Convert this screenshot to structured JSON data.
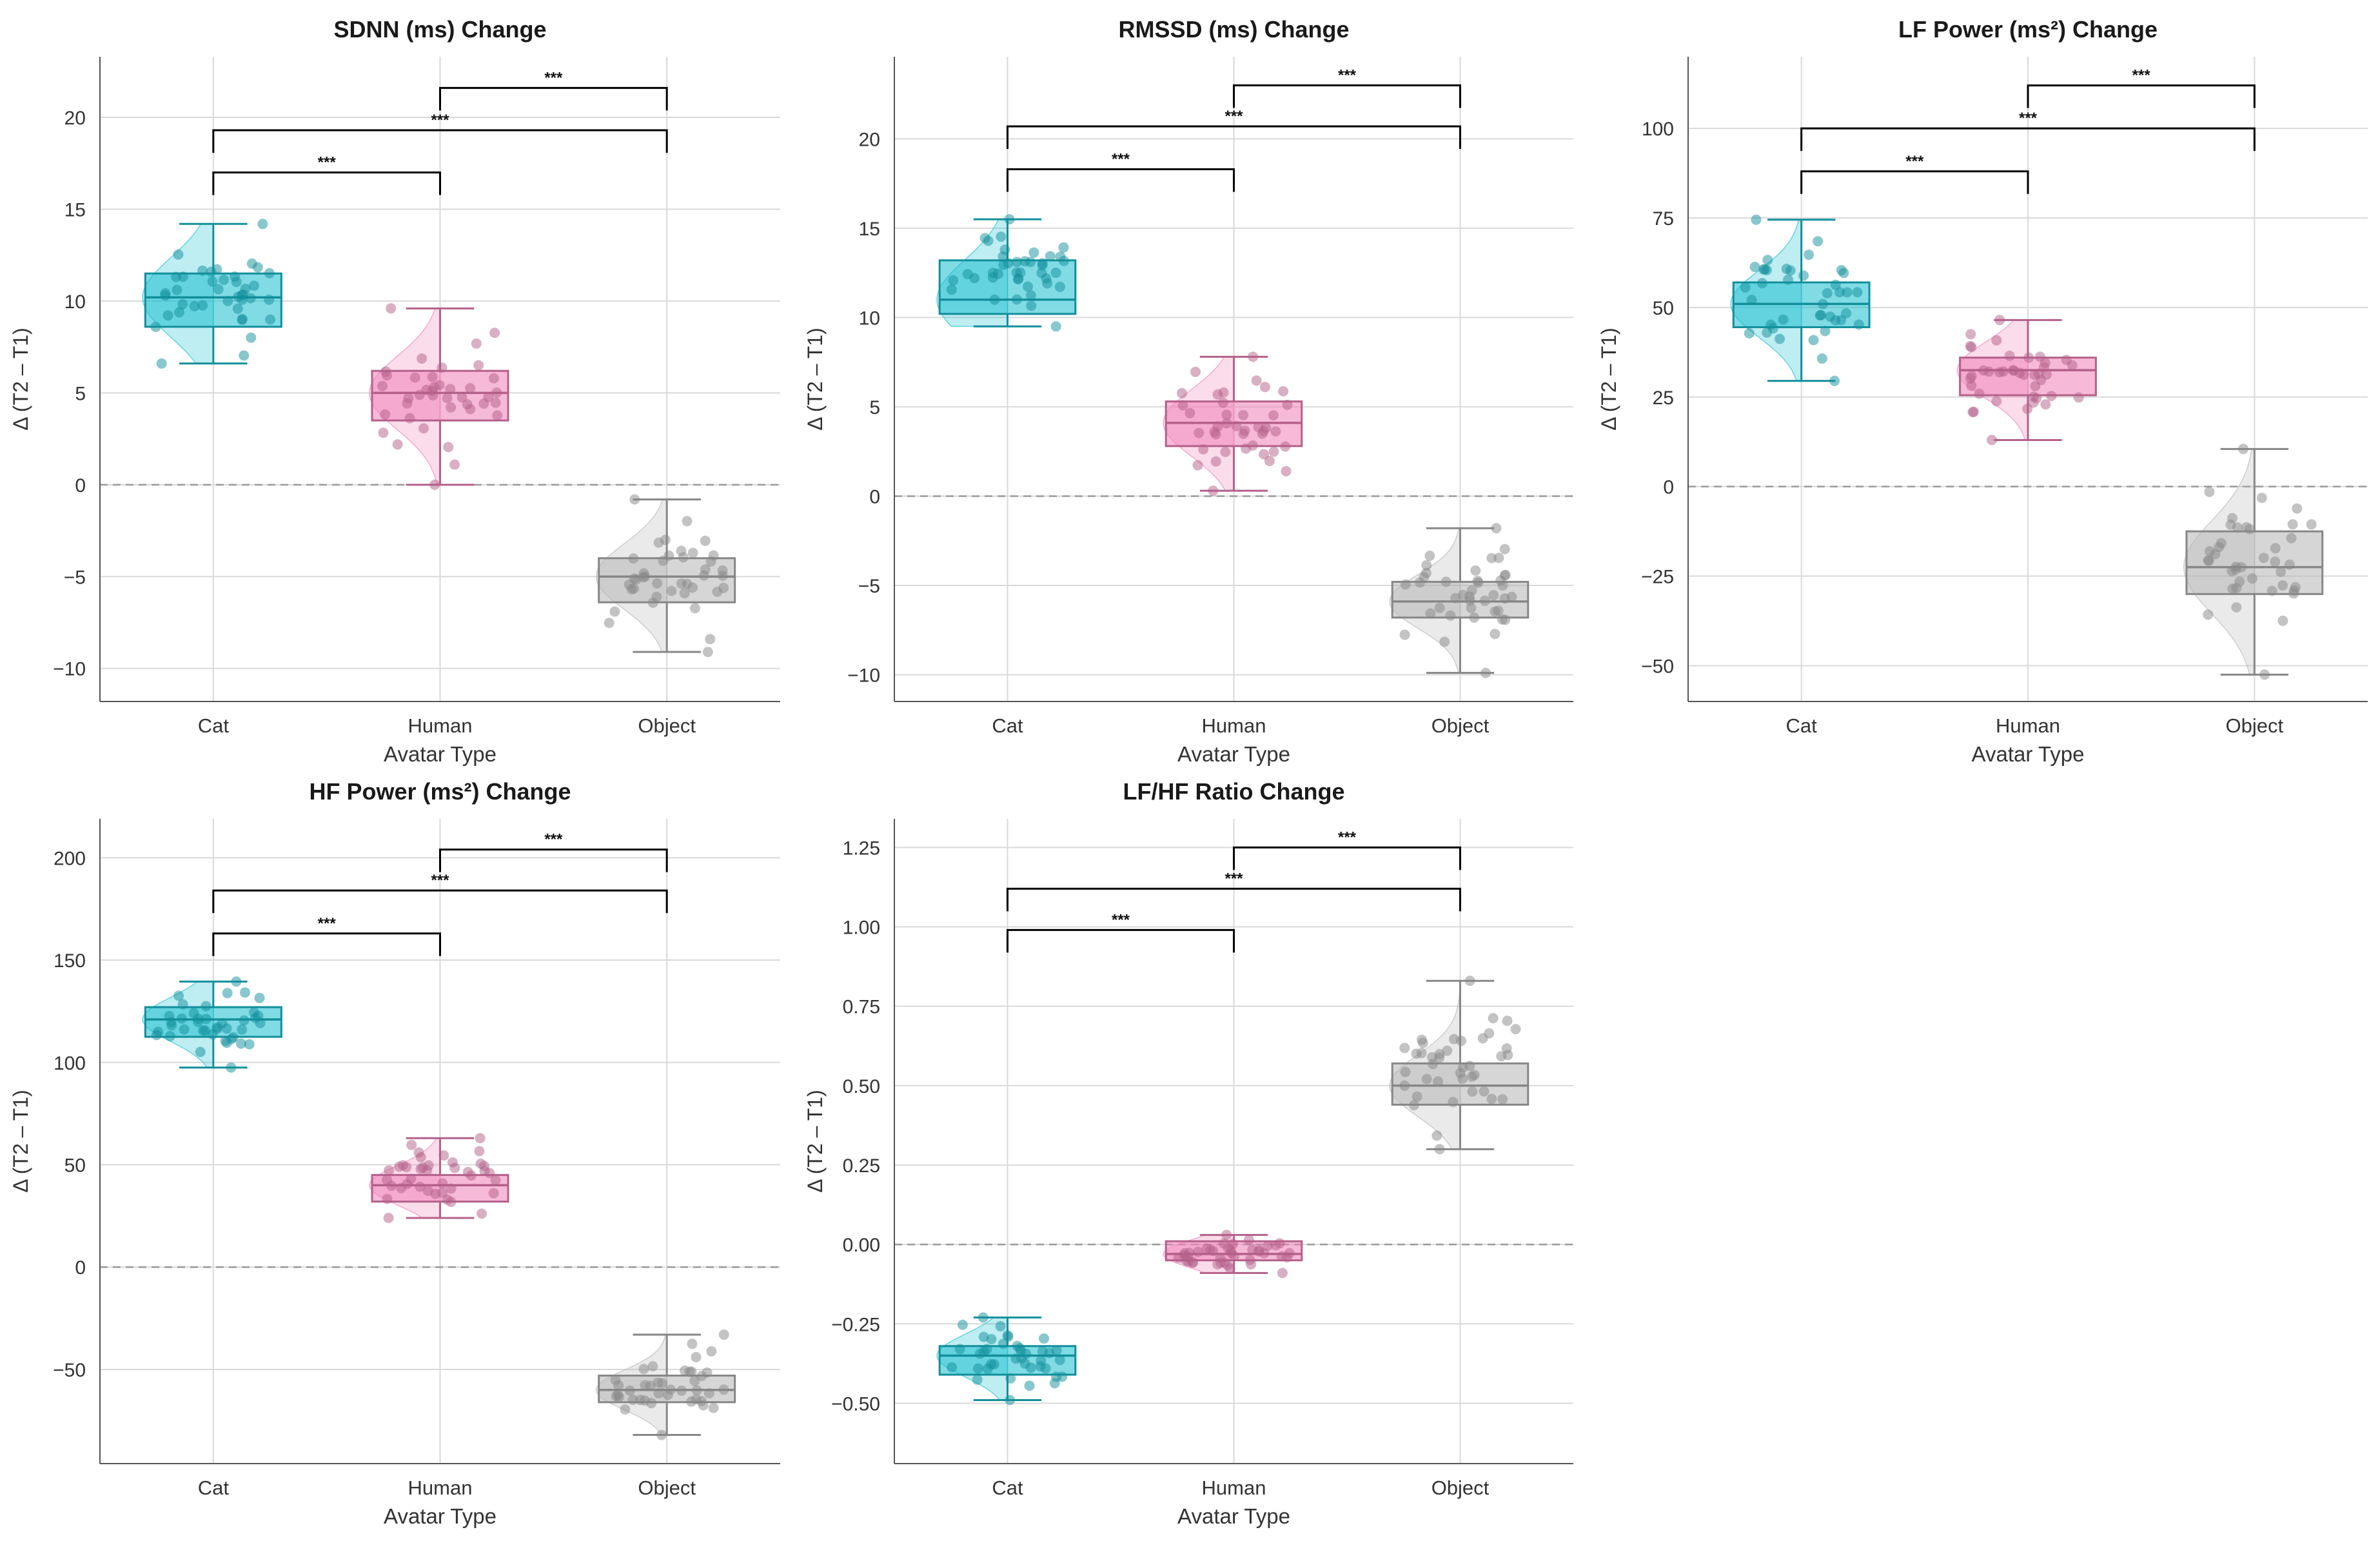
{
  "figure": {
    "colors": {
      "Cat": "#17becf",
      "Human": "#f080b8",
      "Object": "#b4b4b4",
      "bracket": "#000000",
      "grid": "#d9d9d9",
      "zero_line": "#999999"
    }
  },
  "chart_data": [
    {
      "type": "box",
      "title": "SDNN (ms) Change",
      "xlabel": "Avatar Type",
      "ylabel": "Δ (T2 – T1)",
      "categories": [
        "Cat",
        "Human",
        "Object"
      ],
      "yticks": [
        -10,
        -5,
        0,
        5,
        10,
        15,
        20
      ],
      "ytick_labels": [
        "−10",
        "−5",
        "0",
        "5",
        "10",
        "15",
        "20"
      ],
      "ylim": [
        -11.8,
        23.3
      ],
      "zero_line": true,
      "groups": [
        {
          "name": "Cat",
          "whisker_low": 6.6,
          "q1": 8.6,
          "median": 10.2,
          "q3": 11.5,
          "whisker_high": 14.2
        },
        {
          "name": "Human",
          "whisker_low": 0.0,
          "q1": 3.5,
          "median": 5.0,
          "q3": 6.2,
          "whisker_high": 9.6
        },
        {
          "name": "Object",
          "whisker_low": -9.1,
          "q1": -6.4,
          "median": -5.0,
          "q3": -4.0,
          "whisker_high": -0.8
        }
      ],
      "significance": [
        {
          "from": "Cat",
          "to": "Human",
          "label": "***",
          "y": 17.0
        },
        {
          "from": "Cat",
          "to": "Object",
          "label": "***",
          "y": 19.3
        },
        {
          "from": "Human",
          "to": "Object",
          "label": "***",
          "y": 21.6
        }
      ]
    },
    {
      "type": "box",
      "title": "RMSSD (ms) Change",
      "xlabel": "Avatar Type",
      "ylabel": "Δ (T2 – T1)",
      "categories": [
        "Cat",
        "Human",
        "Object"
      ],
      "yticks": [
        -10,
        -5,
        0,
        5,
        10,
        15,
        20
      ],
      "ytick_labels": [
        "−10",
        "−5",
        "0",
        "5",
        "10",
        "15",
        "20"
      ],
      "ylim": [
        -11.5,
        24.6
      ],
      "zero_line": true,
      "groups": [
        {
          "name": "Cat",
          "whisker_low": 9.5,
          "q1": 10.2,
          "median": 11.0,
          "q3": 13.2,
          "whisker_high": 15.5
        },
        {
          "name": "Human",
          "whisker_low": 0.3,
          "q1": 2.8,
          "median": 4.1,
          "q3": 5.3,
          "whisker_high": 7.8
        },
        {
          "name": "Object",
          "whisker_low": -9.9,
          "q1": -6.8,
          "median": -5.9,
          "q3": -4.8,
          "whisker_high": -1.8
        }
      ],
      "significance": [
        {
          "from": "Cat",
          "to": "Human",
          "label": "***",
          "y": 18.3
        },
        {
          "from": "Cat",
          "to": "Object",
          "label": "***",
          "y": 20.7
        },
        {
          "from": "Human",
          "to": "Object",
          "label": "***",
          "y": 23.0
        }
      ]
    },
    {
      "type": "box",
      "title": "LF Power (ms²) Change",
      "xlabel": "Avatar Type",
      "ylabel": "Δ (T2 – T1)",
      "categories": [
        "Cat",
        "Human",
        "Object"
      ],
      "yticks": [
        -50,
        -25,
        0,
        25,
        50,
        75,
        100
      ],
      "ytick_labels": [
        "−50",
        "−25",
        "0",
        "25",
        "50",
        "75",
        "100"
      ],
      "ylim": [
        -60,
        120
      ],
      "zero_line": true,
      "groups": [
        {
          "name": "Cat",
          "whisker_low": 29.5,
          "q1": 44.5,
          "median": 51.0,
          "q3": 57.0,
          "whisker_high": 74.5
        },
        {
          "name": "Human",
          "whisker_low": 13.0,
          "q1": 25.5,
          "median": 32.5,
          "q3": 36.0,
          "whisker_high": 46.5
        },
        {
          "name": "Object",
          "whisker_low": -52.5,
          "q1": -30.0,
          "median": -22.5,
          "q3": -12.5,
          "whisker_high": 10.5
        }
      ],
      "significance": [
        {
          "from": "Cat",
          "to": "Human",
          "label": "***",
          "y": 88.0
        },
        {
          "from": "Cat",
          "to": "Object",
          "label": "***",
          "y": 100.0
        },
        {
          "from": "Human",
          "to": "Object",
          "label": "***",
          "y": 112.0
        }
      ]
    },
    {
      "type": "box",
      "title": "HF Power (ms²) Change",
      "xlabel": "Avatar Type",
      "ylabel": "Δ (T2 – T1)",
      "categories": [
        "Cat",
        "Human",
        "Object"
      ],
      "yticks": [
        -50,
        0,
        50,
        100,
        150,
        200
      ],
      "ytick_labels": [
        "−50",
        "0",
        "50",
        "100",
        "150",
        "200"
      ],
      "ylim": [
        -96,
        219
      ],
      "zero_line": true,
      "groups": [
        {
          "name": "Cat",
          "whisker_low": 97.5,
          "q1": 112.5,
          "median": 121.0,
          "q3": 127.0,
          "whisker_high": 139.5
        },
        {
          "name": "Human",
          "whisker_low": 24.0,
          "q1": 32.0,
          "median": 40.0,
          "q3": 45.0,
          "whisker_high": 63.0
        },
        {
          "name": "Object",
          "whisker_low": -82.0,
          "q1": -66.0,
          "median": -60.0,
          "q3": -53.0,
          "whisker_high": -33.0
        }
      ],
      "significance": [
        {
          "from": "Cat",
          "to": "Human",
          "label": "***",
          "y": 163.0
        },
        {
          "from": "Cat",
          "to": "Object",
          "label": "***",
          "y": 184.0
        },
        {
          "from": "Human",
          "to": "Object",
          "label": "***",
          "y": 204.0
        }
      ]
    },
    {
      "type": "box",
      "title": "LF/HF Ratio Change",
      "xlabel": "Avatar Type",
      "ylabel": "Δ (T2 – T1)",
      "categories": [
        "Cat",
        "Human",
        "Object"
      ],
      "yticks": [
        -0.5,
        -0.25,
        0,
        0.25,
        0.5,
        0.75,
        1.0,
        1.25
      ],
      "ytick_labels": [
        "−0.50",
        "−0.25",
        "0.00",
        "0.25",
        "0.50",
        "0.75",
        "1.00",
        "1.25"
      ],
      "ylim": [
        -0.69,
        1.34
      ],
      "zero_line": true,
      "groups": [
        {
          "name": "Cat",
          "whisker_low": -0.49,
          "q1": -0.41,
          "median": -0.35,
          "q3": -0.32,
          "whisker_high": -0.23
        },
        {
          "name": "Human",
          "whisker_low": -0.09,
          "q1": -0.05,
          "median": -0.03,
          "q3": 0.01,
          "whisker_high": 0.03
        },
        {
          "name": "Object",
          "whisker_low": 0.3,
          "q1": 0.44,
          "median": 0.5,
          "q3": 0.57,
          "whisker_high": 0.83
        }
      ],
      "significance": [
        {
          "from": "Cat",
          "to": "Human",
          "label": "***",
          "y": 0.99
        },
        {
          "from": "Cat",
          "to": "Object",
          "label": "***",
          "y": 1.12
        },
        {
          "from": "Human",
          "to": "Object",
          "label": "***",
          "y": 1.25
        }
      ]
    }
  ]
}
